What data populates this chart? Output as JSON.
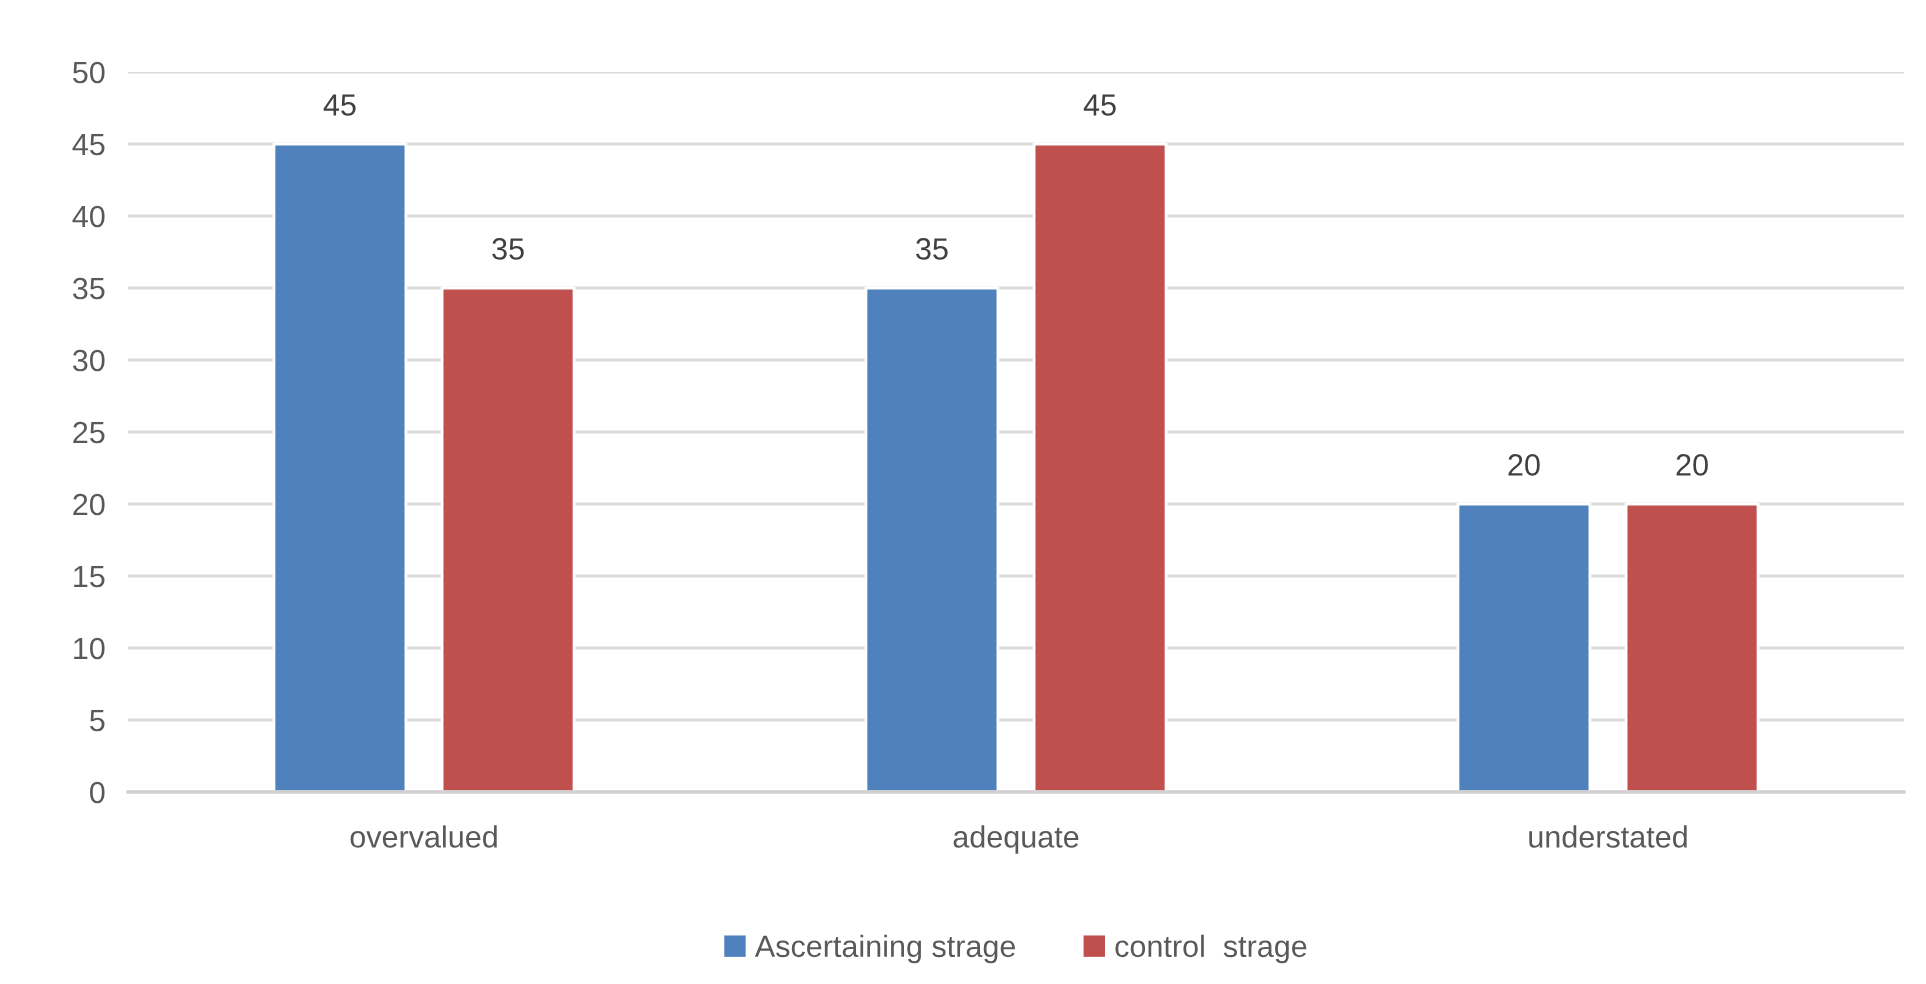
{
  "chart_data": {
    "type": "bar",
    "categories": [
      "overvalued",
      "adequate",
      "understated"
    ],
    "series": [
      {
        "name": "Ascertaining strage",
        "color": "#4f81bd",
        "values": [
          45,
          35,
          20
        ]
      },
      {
        "name": "control  strage",
        "color": "#c0504d",
        "values": [
          35,
          45,
          20
        ]
      }
    ],
    "ylim": [
      0,
      50
    ],
    "yticks": [
      0,
      5,
      10,
      15,
      20,
      25,
      30,
      35,
      40,
      45,
      50
    ],
    "grid": "y",
    "legend": "bottom",
    "data_labels": true
  }
}
